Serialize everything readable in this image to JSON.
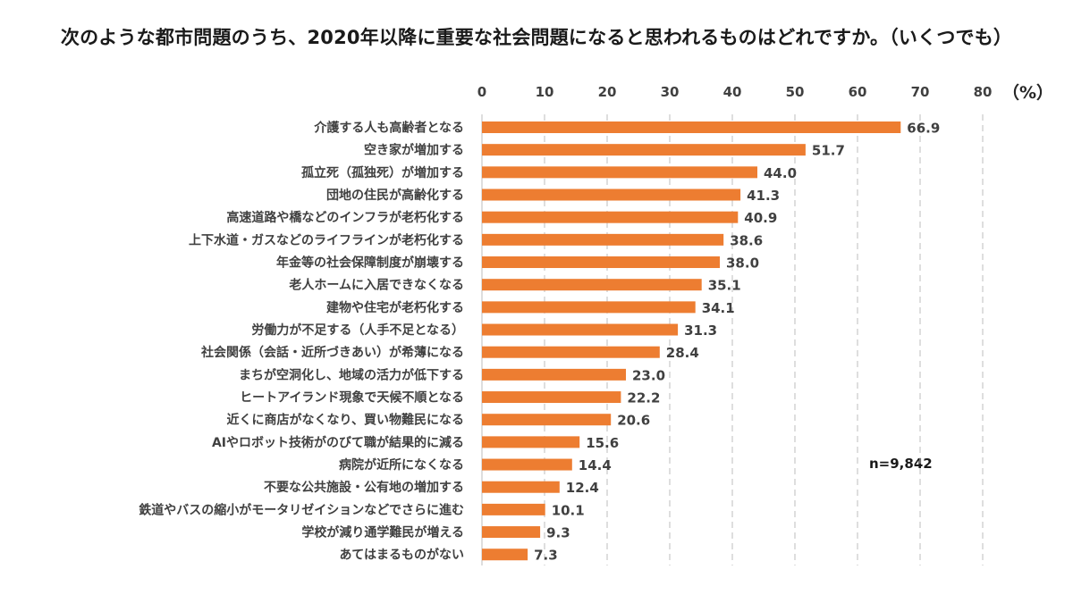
{
  "chart_data": {
    "type": "bar",
    "orientation": "horizontal",
    "title": "次のような都市問題のうち、2020年以降に重要な社会問題になると思われるものはどれですか。（いくつでも）",
    "unit": "（%）",
    "note": "n=9,842",
    "xlim": [
      0,
      80
    ],
    "xticks": [
      0,
      10,
      20,
      30,
      40,
      50,
      60,
      70,
      80
    ],
    "grid": "dashed vertical",
    "bar_color": "#ED7D31",
    "categories": [
      "介護する人も高齢者となる",
      "空き家が増加する",
      "孤立死（孤独死）が増加する",
      "団地の住民が高齢化する",
      "高速道路や橋などのインフラが老朽化する",
      "上下水道・ガスなどのライフラインが老朽化する",
      "年金等の社会保障制度が崩壊する",
      "老人ホームに入居できなくなる",
      "建物や住宅が老朽化する",
      "労働力が不足する（人手不足となる）",
      "社会関係（会話・近所づきあい）が希薄になる",
      "まちが空洞化し、地域の活力が低下する",
      "ヒートアイランド現象で天候不順となる",
      "近くに商店がなくなり、買い物難民になる",
      "AIやロボット技術がのびて職が結果的に減る",
      "病院が近所になくなる",
      "不要な公共施設・公有地の増加する",
      "鉄道やバスの縮小がモータリゼイションなどでさらに進む",
      "学校が減り通学難民が増える",
      "あてはまるものがない"
    ],
    "values": [
      66.9,
      51.7,
      44.0,
      41.3,
      40.9,
      38.6,
      38.0,
      35.1,
      34.1,
      31.3,
      28.4,
      23.0,
      22.2,
      20.6,
      15.6,
      14.4,
      12.4,
      10.1,
      9.3,
      7.3
    ],
    "value_labels": [
      "66.9",
      "51.7",
      "44.0",
      "41.3",
      "40.9",
      "38.6",
      "38.0",
      "35.1",
      "34.1",
      "31.3",
      "28.4",
      "23.0",
      "22.2",
      "20.6",
      "15.6",
      "14.4",
      "12.4",
      "10.1",
      "9.3",
      "7.3"
    ]
  }
}
